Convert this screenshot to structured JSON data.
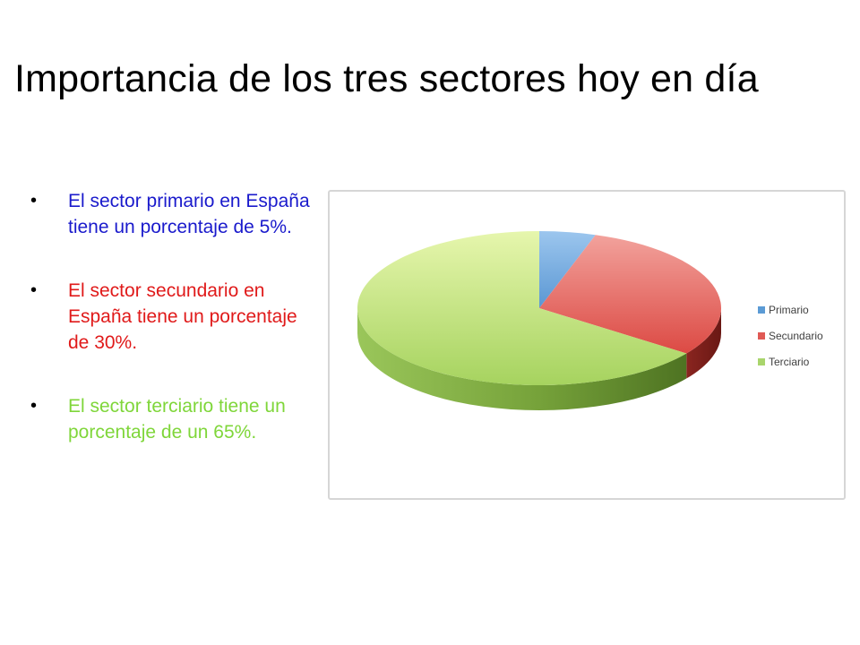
{
  "slide": {
    "title": "Importancia de los tres sectores hoy en día",
    "bullets": [
      {
        "text": "El sector primario en España tiene un porcentaje de 5%.",
        "color": "#1a1acc"
      },
      {
        "text": "El sector secundario en España tiene un porcentaje de 30%.",
        "color": "#e01a1a"
      },
      {
        "text": "El sector terciario tiene un porcentaje de un 65%.",
        "color": "#7fd63a"
      }
    ],
    "bullet_marker": "•"
  },
  "chart_data": {
    "type": "pie",
    "style": "3d",
    "categories": [
      "Primario",
      "Secundario",
      "Terciario"
    ],
    "values": [
      5,
      30,
      65
    ],
    "unit": "%",
    "legend": {
      "position": "right",
      "entries": [
        "Primario",
        "Secundario",
        "Terciario"
      ]
    },
    "colors": {
      "Primario": "#5b9bd5",
      "Secundario": "#e05a55",
      "Terciario": "#a9d56c"
    }
  }
}
